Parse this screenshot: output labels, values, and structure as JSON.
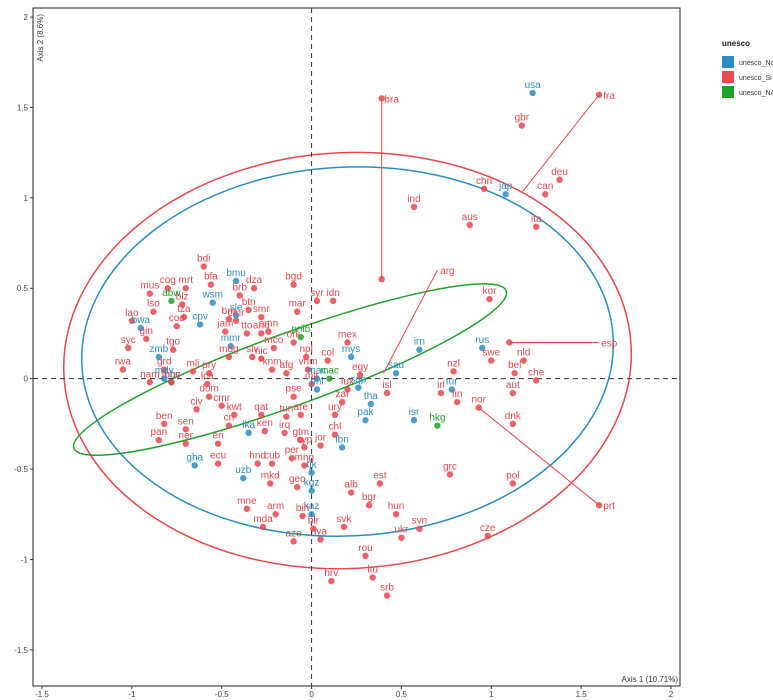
{
  "chart_data": {
    "type": "scatter",
    "xlabel": "Axis 1 (10.71%)",
    "ylabel": "Axis 2 (8.6%)",
    "xlim": [
      -1.55,
      2.05
    ],
    "ylim": [
      -1.7,
      2.05
    ],
    "xticks": [
      -1.5,
      -1,
      -0.5,
      0,
      0.5,
      1,
      1.5,
      2
    ],
    "yticks": [
      -1.5,
      -1,
      -0.5,
      0,
      0.5,
      1,
      1.5,
      2
    ],
    "xtick_labels": [
      "-1.5",
      "-1",
      "-0.5",
      "0",
      "0.5",
      "1",
      "1.5",
      "2"
    ],
    "ytick_labels": [
      "-1.5",
      "-1",
      "-0.5",
      "0",
      "0.5",
      "1",
      "1.5",
      "2"
    ],
    "grid": false,
    "legend": {
      "title": "unesco",
      "position": "top-right",
      "entries": [
        {
          "label": "unesco_No",
          "color": "#2b8cc4"
        },
        {
          "label": "unesco_Si",
          "color": "#e8474c"
        },
        {
          "label": "unesco_NA",
          "color": "#1fa22a"
        }
      ]
    },
    "colors": {
      "blue": "#2b8cc4",
      "red": "#e8474c",
      "green": "#1fa22a"
    },
    "series": [
      {
        "name": "unesco_No",
        "color": "#2b8cc4",
        "points": [
          {
            "label": "usa",
            "x": 1.23,
            "y": 1.58
          },
          {
            "label": "jap",
            "x": 1.08,
            "y": 1.02
          },
          {
            "label": "bmu",
            "x": -0.42,
            "y": 0.54
          },
          {
            "label": "wsm",
            "x": -0.55,
            "y": 0.42
          },
          {
            "label": "sle",
            "x": -0.42,
            "y": 0.35
          },
          {
            "label": "cpv",
            "x": -0.62,
            "y": 0.3
          },
          {
            "label": "bwa",
            "x": -0.95,
            "y": 0.28
          },
          {
            "label": "zmb",
            "x": -0.85,
            "y": 0.12
          },
          {
            "label": "mdv",
            "x": -0.82,
            "y": 0.0
          },
          {
            "label": "bhr",
            "x": -0.78,
            "y": -0.02
          },
          {
            "label": "mmr",
            "x": -0.45,
            "y": 0.18
          },
          {
            "label": "lka",
            "x": -0.35,
            "y": -0.3
          },
          {
            "label": "gha",
            "x": -0.65,
            "y": -0.48
          },
          {
            "label": "uzb",
            "x": -0.38,
            "y": -0.55
          },
          {
            "label": "kaz",
            "x": 0.0,
            "y": -0.75
          },
          {
            "label": "kgz",
            "x": 0.0,
            "y": -0.62
          },
          {
            "label": "tjk",
            "x": 0.0,
            "y": -0.52
          },
          {
            "label": "lbn",
            "x": 0.17,
            "y": -0.38
          },
          {
            "label": "pak",
            "x": 0.3,
            "y": -0.23
          },
          {
            "label": "tha",
            "x": 0.33,
            "y": -0.14
          },
          {
            "label": "sqp",
            "x": 0.26,
            "y": -0.05
          },
          {
            "label": "mys",
            "x": 0.22,
            "y": 0.12
          },
          {
            "label": "sau",
            "x": 0.47,
            "y": 0.03
          },
          {
            "label": "irn",
            "x": 0.6,
            "y": 0.16
          },
          {
            "label": "rus",
            "x": 0.95,
            "y": 0.17
          },
          {
            "label": "tur",
            "x": 0.78,
            "y": -0.06
          },
          {
            "label": "isr",
            "x": 0.57,
            "y": -0.23
          },
          {
            "label": "phl",
            "x": 0.03,
            "y": -0.06
          },
          {
            "label": "mac",
            "x": 0.03,
            "y": 0.0
          }
        ]
      },
      {
        "name": "unesco_Si",
        "color": "#e8474c",
        "points": [
          {
            "label": "fra",
            "x": 1.6,
            "y": 1.57
          },
          {
            "label": "gbr",
            "x": 1.17,
            "y": 1.4
          },
          {
            "label": "bra",
            "x": 0.39,
            "y": 1.55
          },
          {
            "label": "chn",
            "x": 0.96,
            "y": 1.05
          },
          {
            "label": "can",
            "x": 1.3,
            "y": 1.02
          },
          {
            "label": "deu",
            "x": 1.38,
            "y": 1.1
          },
          {
            "label": "ind",
            "x": 0.57,
            "y": 0.95
          },
          {
            "label": "aus",
            "x": 0.88,
            "y": 0.85
          },
          {
            "label": "ita",
            "x": 1.25,
            "y": 0.84
          },
          {
            "label": "arg",
            "x": 0.39,
            "y": 0.55
          },
          {
            "label": "kor",
            "x": 0.99,
            "y": 0.44
          },
          {
            "label": "esp",
            "x": 1.1,
            "y": 0.2
          },
          {
            "label": "swe",
            "x": 1.0,
            "y": 0.1
          },
          {
            "label": "nld",
            "x": 1.18,
            "y": 0.1
          },
          {
            "label": "bel",
            "x": 1.13,
            "y": 0.03
          },
          {
            "label": "che",
            "x": 1.25,
            "y": -0.01
          },
          {
            "label": "aut",
            "x": 1.12,
            "y": -0.08
          },
          {
            "label": "dnk",
            "x": 1.12,
            "y": -0.25
          },
          {
            "label": "nzl",
            "x": 0.79,
            "y": 0.04
          },
          {
            "label": "irl",
            "x": 0.72,
            "y": -0.08
          },
          {
            "label": "fin",
            "x": 0.81,
            "y": -0.13
          },
          {
            "label": "nor",
            "x": 0.93,
            "y": -0.16
          },
          {
            "label": "prt",
            "x": 1.6,
            "y": -0.7
          },
          {
            "label": "pol",
            "x": 1.12,
            "y": -0.58
          },
          {
            "label": "grc",
            "x": 0.77,
            "y": -0.53
          },
          {
            "label": "cze",
            "x": 0.98,
            "y": -0.87
          },
          {
            "label": "svn",
            "x": 0.6,
            "y": -0.83
          },
          {
            "label": "ukr",
            "x": 0.5,
            "y": -0.88
          },
          {
            "label": "hun",
            "x": 0.47,
            "y": -0.75
          },
          {
            "label": "est",
            "x": 0.38,
            "y": -0.58
          },
          {
            "label": "alb",
            "x": 0.22,
            "y": -0.63
          },
          {
            "label": "bgr",
            "x": 0.32,
            "y": -0.7
          },
          {
            "label": "svk",
            "x": 0.18,
            "y": -0.82
          },
          {
            "label": "rou",
            "x": 0.3,
            "y": -0.98
          },
          {
            "label": "lva",
            "x": 0.05,
            "y": -0.89
          },
          {
            "label": "ltu",
            "x": 0.34,
            "y": -1.1
          },
          {
            "label": "hrv",
            "x": 0.11,
            "y": -1.12
          },
          {
            "label": "srb",
            "x": 0.42,
            "y": -1.2
          },
          {
            "label": "isl",
            "x": 0.42,
            "y": -0.08
          },
          {
            "label": "egy",
            "x": 0.27,
            "y": 0.02
          },
          {
            "label": "lux",
            "x": 0.2,
            "y": -0.06
          },
          {
            "label": "zaf",
            "x": 0.17,
            "y": -0.13
          },
          {
            "label": "ury",
            "x": 0.13,
            "y": -0.2
          },
          {
            "label": "chl",
            "x": 0.13,
            "y": -0.31
          },
          {
            "label": "mex",
            "x": 0.2,
            "y": 0.2
          },
          {
            "label": "col",
            "x": 0.09,
            "y": 0.1
          },
          {
            "label": "vnm",
            "x": -0.02,
            "y": 0.05
          },
          {
            "label": "mlt",
            "x": 0.0,
            "y": -0.03
          },
          {
            "label": "pse",
            "x": -0.1,
            "y": -0.1
          },
          {
            "label": "are",
            "x": -0.06,
            "y": -0.2
          },
          {
            "label": "tun",
            "x": -0.14,
            "y": -0.21
          },
          {
            "label": "qat",
            "x": -0.28,
            "y": -0.2
          },
          {
            "label": "kwt",
            "x": -0.43,
            "y": -0.2
          },
          {
            "label": "ken",
            "x": -0.26,
            "y": -0.29
          },
          {
            "label": "irq",
            "x": -0.15,
            "y": -0.3
          },
          {
            "label": "cyp",
            "x": -0.04,
            "y": -0.38
          },
          {
            "label": "jor",
            "x": 0.05,
            "y": -0.37
          },
          {
            "label": "gtm",
            "x": -0.06,
            "y": -0.34
          },
          {
            "label": "per",
            "x": -0.11,
            "y": -0.44
          },
          {
            "label": "mng",
            "x": -0.04,
            "y": -0.48
          },
          {
            "label": "cub",
            "x": -0.22,
            "y": -0.47
          },
          {
            "label": "hnd",
            "x": -0.3,
            "y": -0.47
          },
          {
            "label": "ecu",
            "x": -0.52,
            "y": -0.47
          },
          {
            "label": "mkd",
            "x": -0.23,
            "y": -0.58
          },
          {
            "label": "geo",
            "x": -0.08,
            "y": -0.6
          },
          {
            "label": "mne",
            "x": -0.36,
            "y": -0.72
          },
          {
            "label": "arm",
            "x": -0.2,
            "y": -0.75
          },
          {
            "label": "bih",
            "x": -0.05,
            "y": -0.76
          },
          {
            "label": "mda",
            "x": -0.27,
            "y": -0.82
          },
          {
            "label": "blr",
            "x": 0.01,
            "y": -0.83
          },
          {
            "label": "aze",
            "x": -0.1,
            "y": -0.9
          },
          {
            "label": "afg",
            "x": -0.14,
            "y": 0.03
          },
          {
            "label": "knm",
            "x": -0.22,
            "y": 0.05
          },
          {
            "label": "slv",
            "x": -0.33,
            "y": 0.12
          },
          {
            "label": "nic",
            "x": -0.28,
            "y": 0.11
          },
          {
            "label": "mdg",
            "x": -0.46,
            "y": 0.12
          },
          {
            "label": "mco",
            "x": -0.21,
            "y": 0.17
          },
          {
            "label": "ork",
            "x": -0.1,
            "y": 0.2
          },
          {
            "label": "npl",
            "x": -0.03,
            "y": 0.12
          },
          {
            "label": "and",
            "x": -0.28,
            "y": 0.25
          },
          {
            "label": "omn",
            "x": -0.24,
            "y": 0.26
          },
          {
            "label": "tto",
            "x": -0.36,
            "y": 0.25
          },
          {
            "label": "jam",
            "x": -0.48,
            "y": 0.26
          },
          {
            "label": "cmr",
            "x": -0.42,
            "y": 0.32
          },
          {
            "label": "brn",
            "x": -0.46,
            "y": 0.33
          },
          {
            "label": "smr",
            "x": -0.28,
            "y": 0.34
          },
          {
            "label": "btn",
            "x": -0.35,
            "y": 0.38
          },
          {
            "label": "brb",
            "x": -0.4,
            "y": 0.46
          },
          {
            "label": "dza",
            "x": -0.32,
            "y": 0.5
          },
          {
            "label": "bgd",
            "x": -0.1,
            "y": 0.52
          },
          {
            "label": "mar",
            "x": -0.08,
            "y": 0.37
          },
          {
            "label": "syr",
            "x": 0.03,
            "y": 0.43
          },
          {
            "label": "idn",
            "x": 0.12,
            "y": 0.43
          },
          {
            "label": "bdi",
            "x": -0.6,
            "y": 0.62
          },
          {
            "label": "bfa",
            "x": -0.56,
            "y": 0.52
          },
          {
            "label": "cog",
            "x": -0.8,
            "y": 0.5
          },
          {
            "label": "mrt",
            "x": -0.7,
            "y": 0.5
          },
          {
            "label": "mus",
            "x": -0.9,
            "y": 0.47
          },
          {
            "label": "blz",
            "x": -0.72,
            "y": 0.41
          },
          {
            "label": "lso",
            "x": -0.88,
            "y": 0.37
          },
          {
            "label": "lao",
            "x": -1.0,
            "y": 0.32
          },
          {
            "label": "tza",
            "x": -0.71,
            "y": 0.34
          },
          {
            "label": "cod",
            "x": -0.75,
            "y": 0.29
          },
          {
            "label": "gin",
            "x": -0.92,
            "y": 0.22
          },
          {
            "label": "syc",
            "x": -1.02,
            "y": 0.17
          },
          {
            "label": "tgo",
            "x": -0.77,
            "y": 0.16
          },
          {
            "label": "rwa",
            "x": -1.05,
            "y": 0.05
          },
          {
            "label": "grd",
            "x": -0.82,
            "y": 0.05
          },
          {
            "label": "mli",
            "x": -0.66,
            "y": 0.04
          },
          {
            "label": "pry",
            "x": -0.57,
            "y": 0.03
          },
          {
            "label": "lca",
            "x": -0.58,
            "y": -0.03
          },
          {
            "label": "nam",
            "x": -0.9,
            "y": -0.02
          },
          {
            "label": "moz",
            "x": -0.78,
            "y": -0.02
          },
          {
            "label": "dom",
            "x": -0.57,
            "y": -0.1
          },
          {
            "label": "civ",
            "x": -0.64,
            "y": -0.17
          },
          {
            "label": "cmr",
            "x": -0.5,
            "y": -0.15
          },
          {
            "label": "cri",
            "x": -0.46,
            "y": -0.26
          },
          {
            "label": "ben",
            "x": -0.82,
            "y": -0.25
          },
          {
            "label": "sen",
            "x": -0.7,
            "y": -0.28
          },
          {
            "label": "pan",
            "x": -0.85,
            "y": -0.34
          },
          {
            "label": "ner",
            "x": -0.7,
            "y": -0.36
          },
          {
            "label": "eri",
            "x": -0.52,
            "y": -0.36
          }
        ]
      },
      {
        "name": "unesco_NA",
        "color": "#1fa22a",
        "points": [
          {
            "label": "abw",
            "x": -0.78,
            "y": 0.43
          },
          {
            "label": "prilb",
            "x": -0.06,
            "y": 0.23
          },
          {
            "label": "hkg",
            "x": 0.7,
            "y": -0.26
          },
          {
            "label": "mac",
            "x": 0.1,
            "y": 0.0
          }
        ]
      }
    ],
    "vectors": [
      {
        "label": "fra",
        "x": 1.6,
        "y": 1.57,
        "from": [
          1.17,
          1.03
        ]
      },
      {
        "label": "bra",
        "x": 0.39,
        "y": 1.55,
        "from": [
          0.39,
          0.55
        ]
      },
      {
        "label": "arg",
        "x": 0.7,
        "y": 0.6,
        "from": [
          0.4,
          0.03
        ]
      },
      {
        "label": "esp",
        "x": 1.6,
        "y": 0.2,
        "from": [
          1.1,
          0.2
        ]
      },
      {
        "label": "prt",
        "x": 1.6,
        "y": -0.7,
        "from": [
          0.93,
          -0.16
        ]
      }
    ],
    "ellipses": [
      {
        "group": "unesco_Si",
        "color": "#e8474c",
        "cx": 0.2,
        "cy": 0.1,
        "rx": 1.58,
        "ry": 1.15,
        "angle_deg": -3
      },
      {
        "group": "unesco_No",
        "color": "#2b8cc4",
        "cx": 0.2,
        "cy": 0.15,
        "rx": 1.48,
        "ry": 1.02,
        "angle_deg": -3
      },
      {
        "group": "unesco_NA",
        "color": "#1fa22a",
        "cx": -0.12,
        "cy": 0.05,
        "rx": 1.28,
        "ry": 0.2,
        "angle_deg": -20
      }
    ]
  }
}
